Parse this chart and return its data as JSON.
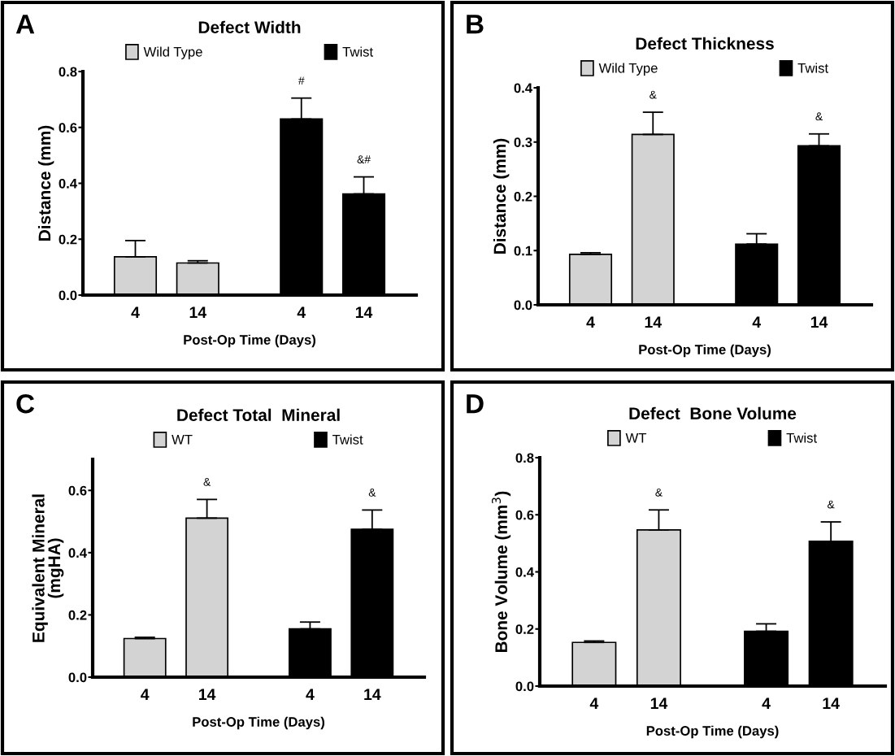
{
  "chart_data": [
    {
      "type": "bar",
      "title": "Defect Width",
      "xlabel": "Post-Op Time (Days)",
      "ylabel": "Distance (mm)",
      "annotations": [
        "A"
      ],
      "categories": [
        "4",
        "14",
        "4",
        "14"
      ],
      "series": [
        {
          "name": "Wild Type",
          "color": "#d3d3d3",
          "values": [
            0.137,
            0.115,
            null,
            null
          ],
          "errors": [
            [
              0.137,
              0.195
            ],
            [
              0.115,
              0.123
            ],
            null,
            null
          ],
          "value_labels": [
            null,
            null,
            null,
            null
          ]
        },
        {
          "name": "Twist",
          "color": "#000000",
          "values": [
            null,
            null,
            0.63,
            0.362
          ],
          "errors": [
            null,
            null,
            [
              0.63,
              0.705
            ],
            [
              0.362,
              0.423
            ]
          ],
          "value_labels": [
            null,
            null,
            "#",
            "&#"
          ]
        }
      ],
      "ylim": [
        0,
        0.8
      ],
      "yticks": [
        {
          "value": 0,
          "label": "0.0"
        },
        {
          "value": 0.2,
          "label": "0.2"
        },
        {
          "value": 0.4,
          "label": "0.4"
        },
        {
          "value": 0.6,
          "label": "0.6"
        },
        {
          "value": 0.8,
          "label": "0.8"
        }
      ],
      "legend": "top",
      "grid": false
    },
    {
      "type": "bar",
      "title": "Defect Thickness",
      "xlabel": "Post-Op Time (Days)",
      "ylabel": "Distance (mm)",
      "annotations": [
        "B"
      ],
      "categories": [
        "4",
        "14",
        "4",
        "14"
      ],
      "series": [
        {
          "name": "Wild Type",
          "color": "#d3d3d3",
          "values": [
            0.093,
            0.314,
            null,
            null
          ],
          "errors": [
            [
              0.093,
              0.096
            ],
            [
              0.314,
              0.355
            ],
            null,
            null
          ],
          "value_labels": [
            null,
            "&",
            null,
            null
          ]
        },
        {
          "name": "Twist",
          "color": "#000000",
          "values": [
            null,
            null,
            0.112,
            0.293
          ],
          "errors": [
            null,
            null,
            [
              0.112,
              0.131
            ],
            [
              0.293,
              0.315
            ]
          ],
          "value_labels": [
            null,
            null,
            null,
            "&"
          ]
        }
      ],
      "ylim": [
        0,
        0.4
      ],
      "yticks": [
        {
          "value": 0,
          "label": "0.0"
        },
        {
          "value": 0.1,
          "label": "0.1"
        },
        {
          "value": 0.2,
          "label": "0.2"
        },
        {
          "value": 0.3,
          "label": "0.3"
        },
        {
          "value": 0.4,
          "label": "0.4"
        }
      ],
      "legend": "top",
      "grid": false
    },
    {
      "type": "bar",
      "title": "Defect Total  Mineral",
      "xlabel": "Post-Op Time (Days)",
      "ylabel": "Equivalent Mineral\n(mgHA)",
      "annotations": [
        "C"
      ],
      "categories": [
        "4",
        "14",
        "4",
        "14"
      ],
      "series": [
        {
          "name": "WT",
          "color": "#d3d3d3",
          "values": [
            0.124,
            0.511,
            null,
            null
          ],
          "errors": [
            [
              0.124,
              0.128
            ],
            [
              0.511,
              0.571
            ],
            null,
            null
          ],
          "value_labels": [
            null,
            "&",
            null,
            null
          ]
        },
        {
          "name": "Twist",
          "color": "#000000",
          "values": [
            null,
            null,
            0.155,
            0.475
          ],
          "errors": [
            null,
            null,
            [
              0.155,
              0.177
            ],
            [
              0.475,
              0.537
            ]
          ],
          "value_labels": [
            null,
            null,
            null,
            "&"
          ]
        }
      ],
      "ylim": [
        0,
        0.7
      ],
      "yticks": [
        {
          "value": 0,
          "label": "0.0"
        },
        {
          "value": 0.2,
          "label": "0.2"
        },
        {
          "value": 0.4,
          "label": "0.4"
        },
        {
          "value": 0.6,
          "label": "0.6"
        }
      ],
      "legend": "top",
      "grid": false
    },
    {
      "type": "bar",
      "title": "Defect  Bone Volume",
      "xlabel": "Post-Op Time (Days)",
      "ylabel": "Bone Volume (mm$^{3}$)",
      "annotations": [
        "D"
      ],
      "categories": [
        "4",
        "14",
        "4",
        "14"
      ],
      "series": [
        {
          "name": "WT",
          "color": "#d3d3d3",
          "values": [
            0.153,
            0.547,
            null,
            null
          ],
          "errors": [
            [
              0.153,
              0.158
            ],
            [
              0.547,
              0.617
            ],
            null,
            null
          ],
          "value_labels": [
            null,
            "&",
            null,
            null
          ]
        },
        {
          "name": "Twist",
          "color": "#000000",
          "values": [
            null,
            null,
            0.192,
            0.507
          ],
          "errors": [
            null,
            null,
            [
              0.192,
              0.218
            ],
            [
              0.507,
              0.575
            ]
          ],
          "value_labels": [
            null,
            null,
            null,
            "&"
          ]
        }
      ],
      "ylim": [
        0,
        0.8
      ],
      "yticks": [
        {
          "value": 0,
          "label": "0.0"
        },
        {
          "value": 0.2,
          "label": "0.2"
        },
        {
          "value": 0.4,
          "label": "0.4"
        },
        {
          "value": 0.6,
          "label": "0.6"
        },
        {
          "value": 0.8,
          "label": "0.8"
        }
      ],
      "legend": "top",
      "grid": false
    }
  ]
}
